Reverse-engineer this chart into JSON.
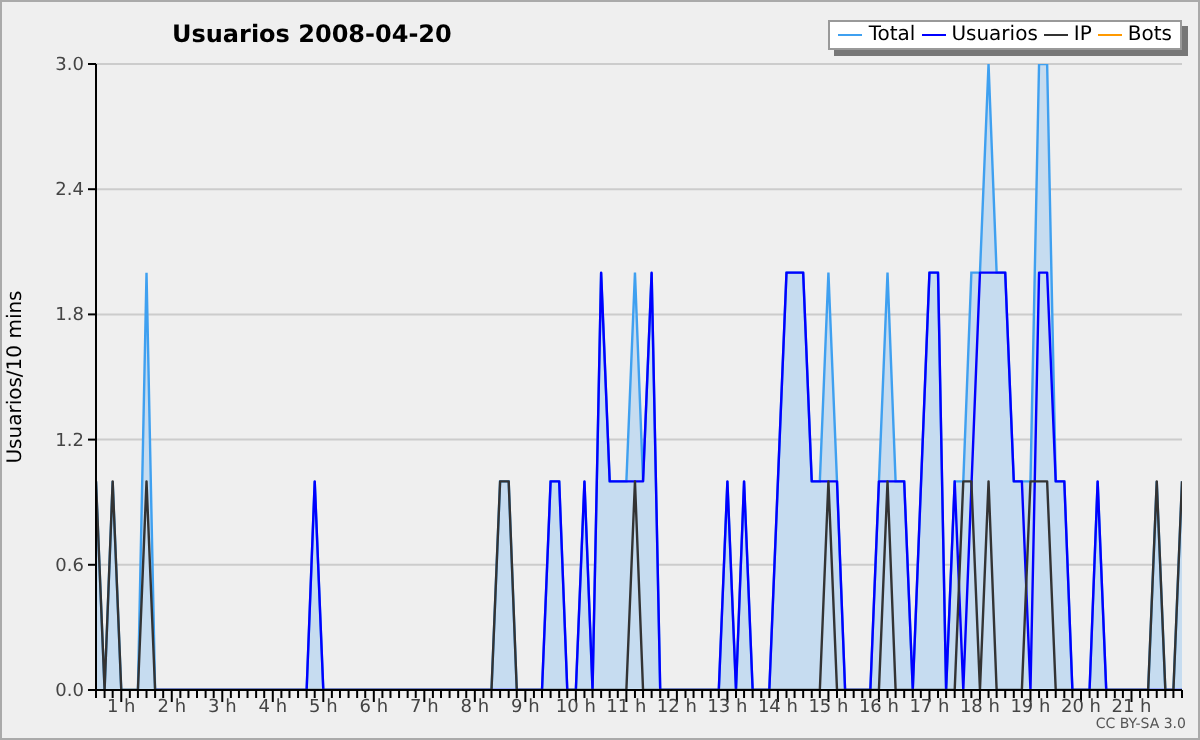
{
  "chart_data": {
    "type": "line",
    "title": "Usuarios 2008-04-20",
    "ylabel": "Usuarios/10 mins",
    "annotations": [
      "CC BY-SA 3.0"
    ],
    "grid": "y",
    "legend": "top right",
    "xlim": [
      0.5,
      22
    ],
    "ylim": [
      0,
      3
    ],
    "yticks": [
      {
        "value": 0,
        "label": "0.0"
      },
      0.6,
      1.2,
      1.8,
      2.4,
      {
        "value": 3,
        "label": "3.0"
      }
    ],
    "xticks": [
      {
        "value": 0.5,
        "label": null
      },
      {
        "value": 0.67,
        "label": null
      },
      {
        "value": 0.83,
        "label": null
      },
      {
        "value": 1,
        "label": "1 h"
      },
      {
        "value": 1.17,
        "label": null
      },
      {
        "value": 1.33,
        "label": null
      },
      {
        "value": 1.5,
        "label": null
      },
      {
        "value": 1.67,
        "label": null
      },
      {
        "value": 1.83,
        "label": null
      },
      {
        "value": 2,
        "label": "2 h"
      },
      {
        "value": 2.17,
        "label": null
      },
      {
        "value": 2.33,
        "label": null
      },
      {
        "value": 2.5,
        "label": null
      },
      {
        "value": 2.67,
        "label": null
      },
      {
        "value": 2.83,
        "label": null
      },
      {
        "value": 3,
        "label": "3 h"
      },
      {
        "value": 3.17,
        "label": null
      },
      {
        "value": 3.33,
        "label": null
      },
      {
        "value": 3.5,
        "label": null
      },
      {
        "value": 3.67,
        "label": null
      },
      {
        "value": 3.83,
        "label": null
      },
      {
        "value": 4,
        "label": "4 h"
      },
      {
        "value": 4.17,
        "label": null
      },
      {
        "value": 4.33,
        "label": null
      },
      {
        "value": 4.5,
        "label": null
      },
      {
        "value": 4.67,
        "label": null
      },
      {
        "value": 4.83,
        "label": null
      },
      {
        "value": 5,
        "label": "5 h"
      },
      {
        "value": 5.17,
        "label": null
      },
      {
        "value": 5.33,
        "label": null
      },
      {
        "value": 5.5,
        "label": null
      },
      {
        "value": 5.67,
        "label": null
      },
      {
        "value": 5.83,
        "label": null
      },
      {
        "value": 6,
        "label": "6 h"
      },
      {
        "value": 6.17,
        "label": null
      },
      {
        "value": 6.33,
        "label": null
      },
      {
        "value": 6.5,
        "label": null
      },
      {
        "value": 6.67,
        "label": null
      },
      {
        "value": 6.83,
        "label": null
      },
      {
        "value": 7,
        "label": "7 h"
      },
      {
        "value": 7.17,
        "label": null
      },
      {
        "value": 7.33,
        "label": null
      },
      {
        "value": 7.5,
        "label": null
      },
      {
        "value": 7.67,
        "label": null
      },
      {
        "value": 7.83,
        "label": null
      },
      {
        "value": 8,
        "label": "8 h"
      },
      {
        "value": 8.17,
        "label": null
      },
      {
        "value": 8.33,
        "label": null
      },
      {
        "value": 8.5,
        "label": null
      },
      {
        "value": 8.67,
        "label": null
      },
      {
        "value": 8.83,
        "label": null
      },
      {
        "value": 9,
        "label": "9 h"
      },
      {
        "value": 9.17,
        "label": null
      },
      {
        "value": 9.33,
        "label": null
      },
      {
        "value": 9.5,
        "label": null
      },
      {
        "value": 9.67,
        "label": null
      },
      {
        "value": 9.83,
        "label": null
      },
      {
        "value": 10,
        "label": "10 h"
      },
      {
        "value": 10.17,
        "label": null
      },
      {
        "value": 10.33,
        "label": null
      },
      {
        "value": 10.5,
        "label": null
      },
      {
        "value": 10.67,
        "label": null
      },
      {
        "value": 10.83,
        "label": null
      },
      {
        "value": 11,
        "label": "11 h"
      },
      {
        "value": 11.17,
        "label": null
      },
      {
        "value": 11.33,
        "label": null
      },
      {
        "value": 11.5,
        "label": null
      },
      {
        "value": 11.67,
        "label": null
      },
      {
        "value": 11.83,
        "label": null
      },
      {
        "value": 12,
        "label": "12 h"
      },
      {
        "value": 12.17,
        "label": null
      },
      {
        "value": 12.33,
        "label": null
      },
      {
        "value": 12.5,
        "label": null
      },
      {
        "value": 12.67,
        "label": null
      },
      {
        "value": 12.83,
        "label": null
      },
      {
        "value": 13,
        "label": "13 h"
      },
      {
        "value": 13.17,
        "label": null
      },
      {
        "value": 13.33,
        "label": null
      },
      {
        "value": 13.5,
        "label": null
      },
      {
        "value": 13.67,
        "label": null
      },
      {
        "value": 13.83,
        "label": null
      },
      {
        "value": 14,
        "label": "14 h"
      },
      {
        "value": 14.17,
        "label": null
      },
      {
        "value": 14.33,
        "label": null
      },
      {
        "value": 14.5,
        "label": null
      },
      {
        "value": 14.67,
        "label": null
      },
      {
        "value": 14.83,
        "label": null
      },
      {
        "value": 15,
        "label": "15 h"
      },
      {
        "value": 15.17,
        "label": null
      },
      {
        "value": 15.33,
        "label": null
      },
      {
        "value": 15.5,
        "label": null
      },
      {
        "value": 15.67,
        "label": null
      },
      {
        "value": 15.83,
        "label": null
      },
      {
        "value": 16,
        "label": "16 h"
      },
      {
        "value": 16.17,
        "label": null
      },
      {
        "value": 16.33,
        "label": null
      },
      {
        "value": 16.5,
        "label": null
      },
      {
        "value": 16.67,
        "label": null
      },
      {
        "value": 16.83,
        "label": null
      },
      {
        "value": 17,
        "label": "17 h"
      },
      {
        "value": 17.17,
        "label": null
      },
      {
        "value": 17.33,
        "label": null
      },
      {
        "value": 17.5,
        "label": null
      },
      {
        "value": 17.67,
        "label": null
      },
      {
        "value": 17.83,
        "label": null
      },
      {
        "value": 18,
        "label": "18 h"
      },
      {
        "value": 18.17,
        "label": null
      },
      {
        "value": 18.33,
        "label": null
      },
      {
        "value": 18.5,
        "label": null
      },
      {
        "value": 18.67,
        "label": null
      },
      {
        "value": 18.83,
        "label": null
      },
      {
        "value": 19,
        "label": "19 h"
      },
      {
        "value": 19.17,
        "label": null
      },
      {
        "value": 19.33,
        "label": null
      },
      {
        "value": 19.5,
        "label": null
      },
      {
        "value": 19.67,
        "label": null
      },
      {
        "value": 19.83,
        "label": null
      },
      {
        "value": 20,
        "label": "20 h"
      },
      {
        "value": 20.17,
        "label": null
      },
      {
        "value": 20.33,
        "label": null
      },
      {
        "value": 20.5,
        "label": null
      },
      {
        "value": 20.67,
        "label": null
      },
      {
        "value": 20.83,
        "label": null
      },
      {
        "value": 21,
        "label": "21 h"
      },
      {
        "value": 21.17,
        "label": null
      },
      {
        "value": 21.33,
        "label": null
      },
      {
        "value": 21.5,
        "label": null
      },
      {
        "value": 21.67,
        "label": null
      },
      {
        "value": 21.83,
        "label": null
      },
      {
        "value": 22,
        "label": null
      }
    ],
    "series": [
      {
        "name": "Total",
        "type": "area",
        "color": "#3fa0f0",
        "x": [
          0.5,
          0.67,
          0.83,
          1,
          1.33,
          1.5,
          1.67,
          4.67,
          4.83,
          5,
          8.33,
          8.5,
          8.67,
          8.83,
          9.33,
          9.5,
          9.67,
          9.83,
          10,
          10.17,
          10.33,
          10.5,
          10.67,
          11,
          11.17,
          11.33,
          11.5,
          11.67,
          12.83,
          13,
          13.17,
          13.33,
          13.5,
          13.83,
          14.17,
          14.5,
          14.67,
          14.83,
          15,
          15.17,
          15.33,
          15.83,
          16,
          16.17,
          16.33,
          16.5,
          16.67,
          17,
          17.17,
          17.33,
          17.5,
          17.67,
          17.83,
          18,
          18.17,
          18.33,
          18.5,
          18.67,
          18.83,
          19,
          19.17,
          19.33,
          19.5,
          19.67,
          19.83,
          20.17,
          20.33,
          20.5,
          21.33,
          21.5,
          21.67,
          21.83,
          22
        ],
        "values": [
          1,
          0,
          1,
          0,
          0,
          2,
          0,
          0,
          1,
          0,
          0,
          1,
          1,
          0,
          0,
          1,
          1,
          0,
          0,
          1,
          0,
          2,
          1,
          1,
          2,
          1,
          2,
          0,
          0,
          1,
          0,
          1,
          0,
          0,
          2,
          2,
          1,
          1,
          2,
          1,
          0,
          0,
          1,
          2,
          1,
          1,
          0,
          2,
          2,
          0,
          1,
          1,
          2,
          2,
          3,
          2,
          2,
          1,
          1,
          1,
          3,
          3,
          1,
          1,
          0,
          0,
          1,
          0,
          0,
          1,
          0,
          0,
          1
        ]
      },
      {
        "name": "Usuarios",
        "type": "line",
        "color": "#0000ff",
        "x": [
          1.67,
          4.67,
          4.83,
          5,
          9.33,
          9.5,
          9.67,
          9.83,
          10,
          10.17,
          10.33,
          10.5,
          10.67,
          11.33,
          11.5,
          11.67,
          12.83,
          13,
          13.17,
          13.33,
          13.5,
          13.83,
          14.17,
          14.5,
          14.67,
          15.17,
          15.33,
          15.83,
          16,
          16.5,
          16.67,
          17,
          17.17,
          17.33,
          17.5,
          17.67,
          18,
          18.5,
          18.67,
          18.83,
          19,
          19.17,
          19.33,
          19.5,
          19.67,
          19.83,
          20.17,
          20.33,
          20.5,
          22
        ],
        "values": [
          0,
          0,
          1,
          0,
          0,
          1,
          1,
          0,
          0,
          1,
          0,
          2,
          1,
          1,
          2,
          0,
          0,
          1,
          0,
          1,
          0,
          0,
          2,
          2,
          1,
          1,
          0,
          0,
          1,
          1,
          0,
          2,
          2,
          0,
          1,
          0,
          2,
          2,
          1,
          1,
          0,
          2,
          2,
          1,
          1,
          0,
          0,
          1,
          0,
          0
        ]
      },
      {
        "name": "IP",
        "type": "line",
        "color": "#333333",
        "x": [
          0.5,
          0.67,
          0.83,
          1,
          1.33,
          1.5,
          1.67,
          8.33,
          8.5,
          8.67,
          8.83,
          11,
          11.17,
          11.33,
          14.83,
          15,
          15.17,
          16,
          16.17,
          16.33,
          17.5,
          17.67,
          17.83,
          18,
          18.17,
          18.33,
          18.83,
          19,
          19.33,
          19.5,
          21.33,
          21.5,
          21.67,
          21.83,
          22
        ],
        "values": [
          1,
          0,
          1,
          0,
          0,
          1,
          0,
          0,
          1,
          1,
          0,
          0,
          1,
          0,
          0,
          1,
          0,
          0,
          1,
          0,
          0,
          1,
          1,
          0,
          1,
          0,
          0,
          1,
          1,
          0,
          0,
          1,
          0,
          0,
          1
        ]
      },
      {
        "name": "Bots",
        "type": "line",
        "color": "#ff9900"
      }
    ]
  }
}
